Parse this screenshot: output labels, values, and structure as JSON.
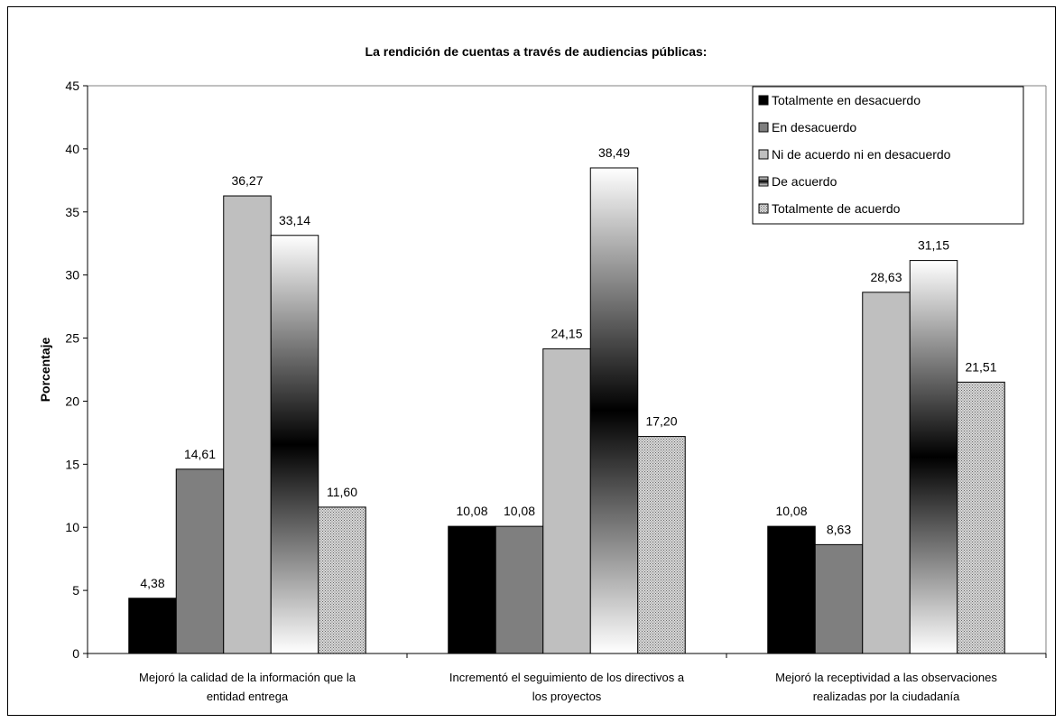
{
  "chart_data": {
    "type": "bar",
    "title": "La rendición de cuentas a través de audiencias públicas:",
    "xlabel": "",
    "ylabel": "Porcentaje",
    "ylim": [
      0,
      45
    ],
    "yticks": [
      "0",
      "5",
      "10",
      "15",
      "20",
      "25",
      "30",
      "35",
      "40",
      "45"
    ],
    "grid": false,
    "legend_position": "top-right",
    "categories": [
      [
        "Mejoró la calidad de la información que la",
        "entidad entrega"
      ],
      [
        "Incrementó el seguimiento de los directivos a",
        "los proyectos"
      ],
      [
        "Mejoró la receptividad a las observaciones",
        "realizadas por la ciudadanía"
      ]
    ],
    "series": [
      {
        "name": "Totalmente en desacuerdo",
        "values": [
          4.38,
          10.08,
          10.08
        ],
        "labels": [
          "4,38",
          "10,08",
          "10,08"
        ],
        "fill": "#000000"
      },
      {
        "name": "En desacuerdo",
        "values": [
          14.61,
          10.08,
          8.63
        ],
        "labels": [
          "14,61",
          "10,08",
          "8,63"
        ],
        "fill": "#7f7f7f"
      },
      {
        "name": "Ni de acuerdo ni en desacuerdo",
        "values": [
          36.27,
          24.15,
          28.63
        ],
        "labels": [
          "36,27",
          "24,15",
          "28,63"
        ],
        "fill": "#bfbfbf"
      },
      {
        "name": "De acuerdo",
        "values": [
          33.14,
          38.49,
          31.15
        ],
        "labels": [
          "33,14",
          "38,49",
          "31,15"
        ],
        "fill": "gradient"
      },
      {
        "name": "Totalmente de acuerdo",
        "values": [
          11.6,
          17.2,
          21.51
        ],
        "labels": [
          "11,60",
          "17,20",
          "21,51"
        ],
        "fill": "pattern"
      }
    ]
  }
}
